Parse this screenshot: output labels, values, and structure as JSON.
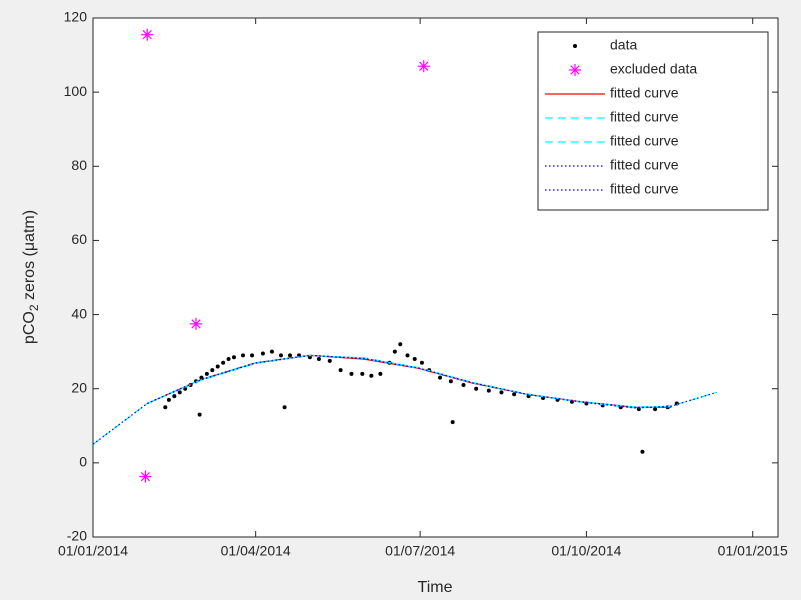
{
  "chart_data": {
    "type": "scatter",
    "xlabel": "Time",
    "ylabel": {
      "main": "pCO",
      "sub": "2",
      "rest": " zeros (μatm)"
    },
    "xlim": [
      "2014-01-01",
      "2015-01-15"
    ],
    "xticks": [
      {
        "value": "2014-01-01",
        "label": "01/01/2014"
      },
      {
        "value": "2014-04-01",
        "label": "01/04/2014"
      },
      {
        "value": "2014-07-01",
        "label": "01/07/2014"
      },
      {
        "value": "2014-10-01",
        "label": "01/10/2014"
      },
      {
        "value": "2015-01-01",
        "label": "01/01/2015"
      }
    ],
    "ylim": [
      -20,
      120
    ],
    "yticks": [
      -20,
      0,
      20,
      40,
      60,
      80,
      100,
      120
    ],
    "legend": "northeast",
    "series": [
      {
        "name": "data",
        "color": "#000000",
        "marker": "dot",
        "x": [
          "2014-02-10",
          "2014-02-12",
          "2014-02-15",
          "2014-02-18",
          "2014-02-21",
          "2014-02-24",
          "2014-02-27",
          "2014-03-01",
          "2014-03-02",
          "2014-03-05",
          "2014-03-08",
          "2014-03-11",
          "2014-03-14",
          "2014-03-17",
          "2014-03-20",
          "2014-03-25",
          "2014-03-30",
          "2014-04-05",
          "2014-04-10",
          "2014-04-15",
          "2014-04-17",
          "2014-04-20",
          "2014-04-25",
          "2014-05-01",
          "2014-05-06",
          "2014-05-12",
          "2014-05-18",
          "2014-05-24",
          "2014-05-30",
          "2014-06-04",
          "2014-06-09",
          "2014-06-14",
          "2014-06-17",
          "2014-06-20",
          "2014-06-24",
          "2014-06-28",
          "2014-07-02",
          "2014-07-06",
          "2014-07-12",
          "2014-07-18",
          "2014-07-19",
          "2014-07-25",
          "2014-08-01",
          "2014-08-08",
          "2014-08-15",
          "2014-08-22",
          "2014-08-30",
          "2014-09-07",
          "2014-09-15",
          "2014-09-23",
          "2014-10-01",
          "2014-10-10",
          "2014-10-20",
          "2014-10-30",
          "2014-11-01",
          "2014-11-08",
          "2014-11-15",
          "2014-11-20"
        ],
        "values": [
          15,
          17,
          18,
          19,
          20,
          21,
          22,
          13,
          23,
          24,
          25,
          26,
          27,
          28,
          28.5,
          29,
          29,
          29.5,
          30,
          29,
          15,
          29,
          29,
          28.5,
          28,
          27.5,
          25,
          24,
          24,
          23.5,
          24,
          27,
          30,
          32,
          29,
          28,
          27,
          25,
          23,
          22,
          11,
          21,
          20,
          19.5,
          19,
          18.5,
          18,
          17.5,
          17,
          16.5,
          16,
          15.5,
          15,
          14.5,
          3,
          14.5,
          15,
          16
        ]
      },
      {
        "name": "excluded data",
        "color": "#ff00ff",
        "marker": "asterisk",
        "x": [
          "2014-01-31",
          "2014-02-27",
          "2014-01-30",
          "2014-07-03"
        ],
        "values": [
          115.5,
          37.5,
          -3.7,
          107
        ]
      },
      {
        "name": "fitted curve",
        "color": "#ff0000",
        "line": "solid",
        "x": [
          "2014-01-31",
          "2014-03-02",
          "2014-04-01",
          "2014-05-01",
          "2014-05-31",
          "2014-06-30",
          "2014-07-30",
          "2014-08-29",
          "2014-09-28",
          "2014-10-28",
          "2014-11-17"
        ],
        "values": [
          16,
          22.5,
          27,
          29,
          28,
          25.5,
          21.5,
          18.5,
          16.5,
          15,
          15
        ]
      },
      {
        "name": "fitted curve",
        "color": "#00ffff",
        "line": "dashed",
        "x": [
          "2014-01-31",
          "2014-03-02",
          "2014-04-01",
          "2014-05-01",
          "2014-05-31",
          "2014-06-30",
          "2014-07-30",
          "2014-08-29",
          "2014-09-28",
          "2014-10-28",
          "2014-11-17"
        ],
        "values": [
          16,
          22.3,
          26.8,
          29,
          28.3,
          25.7,
          21.7,
          18.6,
          16.5,
          15.1,
          15.2
        ]
      },
      {
        "name": "fitted curve",
        "color": "#00ffff",
        "line": "dashed",
        "x": [
          "2014-01-01",
          "2014-01-31",
          "2014-03-02",
          "2014-04-01",
          "2014-05-01",
          "2014-05-31",
          "2014-06-30",
          "2014-07-30",
          "2014-08-29",
          "2014-09-28",
          "2014-10-28",
          "2014-11-17",
          "2014-12-12"
        ],
        "values": [
          5,
          16,
          22.5,
          27,
          29,
          28.2,
          25.6,
          21.6,
          18.5,
          16.4,
          14.8,
          15.3,
          19
        ]
      },
      {
        "name": "fitted curve",
        "color": "#0000ff",
        "line": "dotted",
        "x": [
          "2014-01-31",
          "2014-03-02",
          "2014-04-01",
          "2014-05-01",
          "2014-05-31",
          "2014-06-30",
          "2014-07-30",
          "2014-08-29",
          "2014-09-28",
          "2014-10-28",
          "2014-11-17"
        ],
        "values": [
          16,
          22.4,
          26.9,
          29,
          28.1,
          25.6,
          21.6,
          18.5,
          16.5,
          15,
          15.1
        ]
      },
      {
        "name": "fitted curve",
        "color": "#0000ff",
        "line": "dotted",
        "x": [
          "2014-01-01",
          "2014-01-31",
          "2014-03-02",
          "2014-04-01",
          "2014-05-01",
          "2014-05-31",
          "2014-06-30",
          "2014-07-30",
          "2014-08-29",
          "2014-09-28",
          "2014-10-28",
          "2014-11-17",
          "2014-12-12"
        ],
        "values": [
          5,
          16,
          22.5,
          27,
          29,
          28.2,
          25.6,
          21.6,
          18.5,
          16.4,
          14.8,
          15.3,
          19
        ]
      }
    ]
  }
}
